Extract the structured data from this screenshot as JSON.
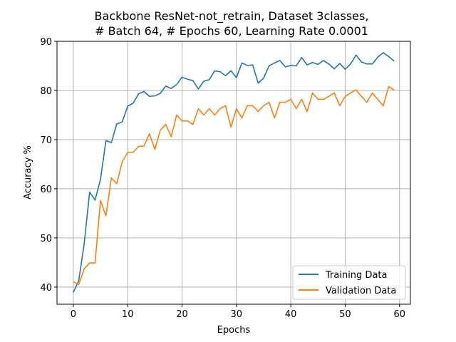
{
  "chart_data": {
    "type": "line",
    "title_lines": [
      "Backbone ResNet-not_retrain, Dataset 3classes,",
      "# Batch 64, # Epochs 60, Learning Rate 0.0001"
    ],
    "xlabel": "Epochs",
    "ylabel": "Accuracy %",
    "xlim": [
      -3,
      62
    ],
    "ylim": [
      36.5,
      90
    ],
    "xticks": [
      0,
      10,
      20,
      30,
      40,
      50,
      60
    ],
    "yticks": [
      40,
      50,
      60,
      70,
      80,
      90
    ],
    "grid": true,
    "legend_position": "lower-right",
    "x": [
      0,
      1,
      2,
      3,
      4,
      5,
      6,
      7,
      8,
      9,
      10,
      11,
      12,
      13,
      14,
      15,
      16,
      17,
      18,
      19,
      20,
      21,
      22,
      23,
      24,
      25,
      26,
      27,
      28,
      29,
      30,
      31,
      32,
      33,
      34,
      35,
      36,
      37,
      38,
      39,
      40,
      41,
      42,
      43,
      44,
      45,
      46,
      47,
      48,
      49,
      50,
      51,
      52,
      53,
      54,
      55,
      56,
      57,
      58,
      59
    ],
    "series": [
      {
        "name": "Training Data",
        "color": "#1f77b4",
        "values": [
          38.9,
          41.3,
          48.8,
          59.3,
          57.7,
          61.9,
          69.8,
          69.4,
          73.2,
          73.6,
          76.8,
          77.4,
          79.3,
          79.8,
          78.8,
          78.9,
          79.4,
          80.9,
          80.4,
          81.2,
          82.7,
          82.3,
          82.0,
          80.3,
          81.9,
          82.2,
          84.0,
          83.8,
          83.0,
          84.0,
          82.6,
          85.6,
          85.1,
          85.2,
          81.5,
          82.5,
          85.0,
          85.6,
          86.1,
          84.8,
          85.1,
          85.0,
          86.7,
          85.2,
          85.7,
          85.3,
          86.1,
          85.4,
          84.4,
          85.5,
          84.3,
          85.4,
          87.2,
          85.8,
          85.4,
          85.4,
          86.8,
          87.7,
          86.9,
          86.0
        ]
      },
      {
        "name": "Validation Data",
        "color": "#ff7f0e",
        "values": [
          41.1,
          40.5,
          43.7,
          44.9,
          44.9,
          57.6,
          54.5,
          62.2,
          61.0,
          65.5,
          67.4,
          67.4,
          68.6,
          68.7,
          71.2,
          68.0,
          71.9,
          73.1,
          70.6,
          75.0,
          73.8,
          73.8,
          73.1,
          76.3,
          75.0,
          76.3,
          75.0,
          76.3,
          76.9,
          72.5,
          76.3,
          74.4,
          76.9,
          76.9,
          75.7,
          76.9,
          77.6,
          74.4,
          77.6,
          77.6,
          78.2,
          76.3,
          78.2,
          75.7,
          79.5,
          78.2,
          78.2,
          78.8,
          79.5,
          76.9,
          78.8,
          79.5,
          80.1,
          78.8,
          77.6,
          79.5,
          78.2,
          76.9,
          80.8,
          80.1
        ]
      }
    ]
  }
}
